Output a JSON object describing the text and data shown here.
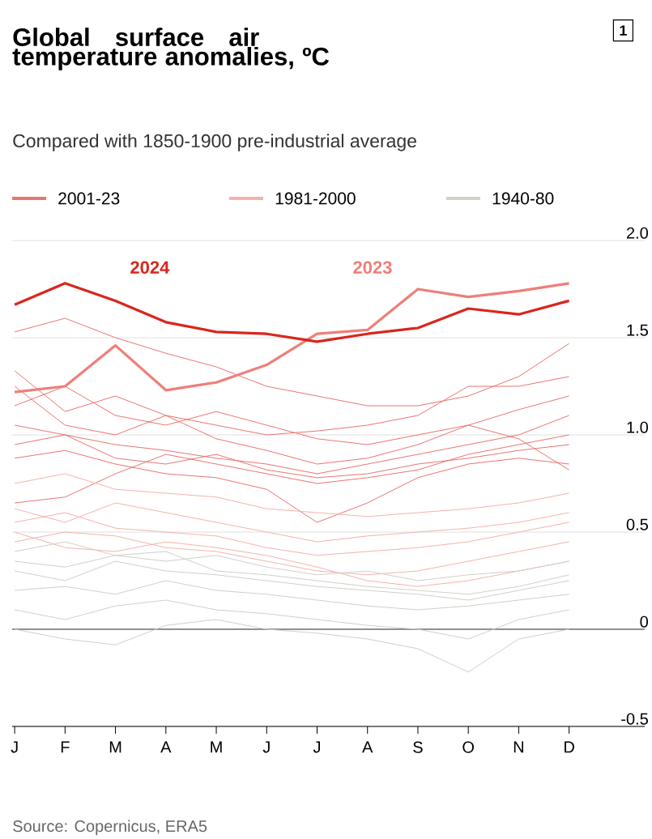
{
  "chart_data": {
    "type": "line",
    "title": "Global surface air temperature anomalies, ºC",
    "subtitle": "Compared with 1850-1900 pre-industrial average",
    "categories": [
      "J",
      "F",
      "M",
      "A",
      "M",
      "J",
      "J",
      "A",
      "S",
      "O",
      "N",
      "D"
    ],
    "series": [
      {
        "name": "2001-23",
        "color": "#ea7470",
        "values": [
          1.53,
          1.6,
          1.5,
          1.42,
          1.35,
          1.25,
          1.2,
          1.15,
          1.15,
          1.2,
          1.3,
          1.47
        ]
      },
      {
        "color": "#ea7470",
        "values": [
          1.33,
          1.12,
          1.2,
          1.1,
          1.05,
          1.0,
          1.02,
          1.05,
          1.1,
          1.25,
          1.25,
          1.3
        ]
      },
      {
        "color": "#ea7470",
        "values": [
          1.25,
          1.05,
          1.0,
          1.1,
          0.98,
          0.92,
          0.85,
          0.88,
          0.95,
          1.05,
          1.13,
          1.2
        ]
      },
      {
        "color": "#ea7470",
        "values": [
          1.05,
          1.0,
          0.95,
          0.92,
          0.88,
          0.85,
          0.8,
          0.85,
          0.9,
          0.95,
          1.0,
          1.1
        ]
      },
      {
        "color": "#ea7470",
        "values": [
          0.95,
          1.0,
          0.88,
          0.85,
          0.9,
          0.82,
          0.78,
          0.8,
          0.85,
          0.88,
          0.92,
          0.95
        ]
      },
      {
        "color": "#ea7470",
        "values": [
          0.88,
          0.92,
          0.85,
          0.8,
          0.78,
          0.72,
          0.55,
          0.65,
          0.78,
          0.85,
          0.88,
          0.85
        ]
      },
      {
        "color": "#ea7470",
        "values": [
          0.65,
          0.68,
          0.8,
          0.9,
          0.85,
          0.8,
          0.75,
          0.78,
          0.82,
          0.9,
          0.95,
          1.0
        ]
      },
      {
        "color": "#ea7470",
        "values": [
          1.15,
          1.25,
          1.1,
          1.05,
          1.12,
          1.05,
          0.98,
          0.95,
          1.0,
          1.05,
          0.98,
          0.82
        ]
      },
      {
        "name": "1981-2000",
        "color": "#f4b2aa",
        "values": [
          0.75,
          0.8,
          0.72,
          0.7,
          0.68,
          0.62,
          0.6,
          0.58,
          0.6,
          0.62,
          0.65,
          0.7
        ]
      },
      {
        "color": "#f4b2aa",
        "values": [
          0.62,
          0.55,
          0.65,
          0.6,
          0.55,
          0.5,
          0.45,
          0.48,
          0.5,
          0.52,
          0.55,
          0.6
        ]
      },
      {
        "color": "#f4b2aa",
        "values": [
          0.55,
          0.6,
          0.52,
          0.5,
          0.48,
          0.42,
          0.38,
          0.4,
          0.42,
          0.45,
          0.5,
          0.55
        ]
      },
      {
        "color": "#f4b2aa",
        "values": [
          0.45,
          0.5,
          0.48,
          0.42,
          0.4,
          0.35,
          0.3,
          0.28,
          0.3,
          0.35,
          0.4,
          0.45
        ]
      },
      {
        "color": "#f4b2aa",
        "values": [
          0.5,
          0.42,
          0.4,
          0.45,
          0.42,
          0.38,
          0.32,
          0.25,
          0.22,
          0.25,
          0.3,
          0.35
        ]
      },
      {
        "name": "1940-80",
        "color": "#cfd0c8",
        "values": [
          0.4,
          0.45,
          0.38,
          0.35,
          0.38,
          0.32,
          0.28,
          0.3,
          0.25,
          0.28,
          0.3,
          0.35
        ]
      },
      {
        "color": "#cfd0c8",
        "values": [
          0.3,
          0.25,
          0.35,
          0.3,
          0.28,
          0.25,
          0.22,
          0.2,
          0.18,
          0.15,
          0.2,
          0.25
        ]
      },
      {
        "color": "#cfd0c8",
        "values": [
          0.2,
          0.22,
          0.18,
          0.25,
          0.2,
          0.18,
          0.15,
          0.12,
          0.1,
          0.12,
          0.15,
          0.18
        ]
      },
      {
        "color": "#cfd0c8",
        "values": [
          0.1,
          0.05,
          0.12,
          0.15,
          0.1,
          0.08,
          0.05,
          0.02,
          0.0,
          -0.05,
          0.05,
          0.1
        ]
      },
      {
        "color": "#cfd0c8",
        "values": [
          0.0,
          -0.05,
          -0.08,
          0.02,
          0.05,
          0.0,
          -0.02,
          -0.05,
          -0.1,
          -0.22,
          -0.05,
          0.0
        ]
      },
      {
        "color": "#cfd0c8",
        "values": [
          0.35,
          0.32,
          0.38,
          0.4,
          0.3,
          0.28,
          0.25,
          0.22,
          0.2,
          0.18,
          0.22,
          0.28
        ]
      },
      {
        "color": "#ee7f79",
        "values": [
          1.22,
          1.25,
          1.46,
          1.23,
          1.27,
          1.36,
          1.52,
          1.54,
          1.75,
          1.71,
          1.74,
          1.78
        ]
      },
      {
        "color": "#d9261c",
        "values": [
          1.67,
          1.78,
          1.69,
          1.58,
          1.53,
          1.52,
          1.48,
          1.52,
          1.55,
          1.65,
          1.62,
          1.69
        ]
      }
    ],
    "ylim": [
      -0.5,
      2.0
    ],
    "yticks": [
      {
        "value": 2.0,
        "label": "2.0"
      },
      1.5,
      {
        "value": 1.0,
        "label": "1.0"
      },
      0.5,
      0,
      -0.5
    ],
    "ref_lines": [
      {
        "axis": "y",
        "value": 0,
        "color": "#333333"
      }
    ],
    "annotations": [
      "2024",
      "2023",
      "1",
      "Source: Copernicus, ERA5"
    ],
    "grid": "y",
    "legend": "top left",
    "marker": "none",
    "line_style": "solid"
  }
}
